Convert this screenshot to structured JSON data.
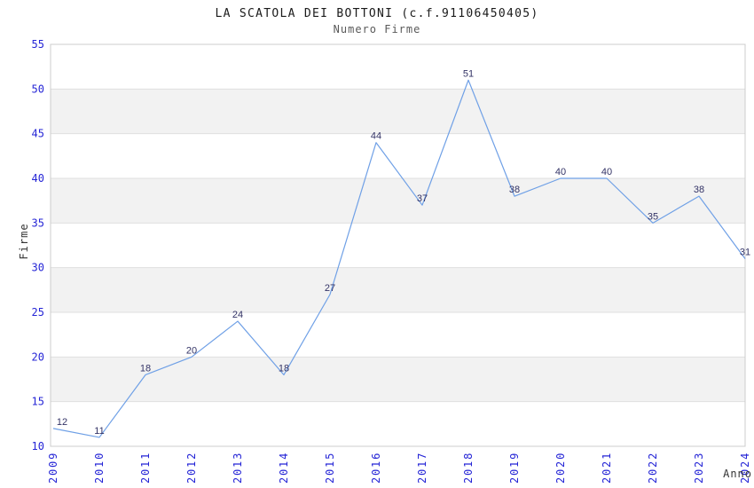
{
  "chart_data": {
    "type": "line",
    "title": "LA SCATOLA DEI BOTTONI (c.f.91106450405)",
    "subtitle": "Numero Firme",
    "xlabel": "Anno",
    "ylabel": "Firme",
    "categories": [
      "2009",
      "2010",
      "2011",
      "2012",
      "2013",
      "2014",
      "2015",
      "2016",
      "2017",
      "2018",
      "2019",
      "2020",
      "2021",
      "2022",
      "2023",
      "2024"
    ],
    "series": [
      {
        "name": "Numero Firme",
        "values": [
          12,
          11,
          18,
          20,
          24,
          18,
          27,
          44,
          37,
          51,
          38,
          40,
          40,
          35,
          38,
          31
        ]
      }
    ],
    "ylim": [
      10,
      55
    ],
    "ytick_step": 5,
    "legend": "none",
    "grid": "horizontal-bands",
    "colors": {
      "line": "#6FA0E6",
      "tick_label": "#2525D6",
      "data_label": "#333366",
      "band": "#F2F2F2",
      "grid_line": "#DFDFDF",
      "plot_border": "#CCCCCC",
      "title": "#1a1a1a",
      "subtitle": "#5a5a5a",
      "axis_label": "#333333",
      "background": "#FFFFFF"
    }
  }
}
